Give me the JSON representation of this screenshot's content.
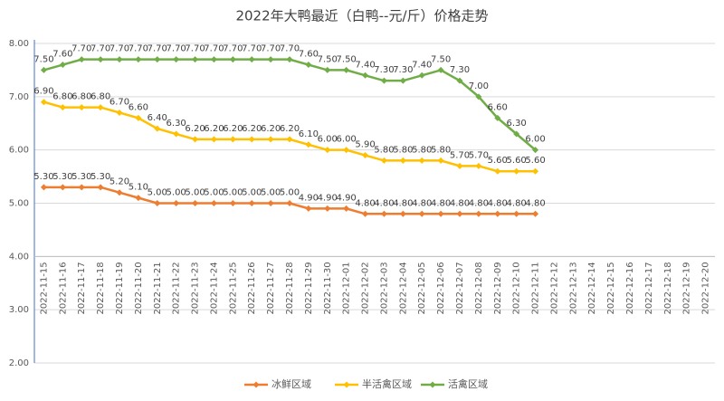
{
  "chart_data": {
    "type": "line",
    "title": "2022年大鸭最近（白鸭--元/斤）价格走势",
    "categories": [
      "2022-11-15",
      "2022-11-16",
      "2022-11-17",
      "2022-11-18",
      "2022-11-19",
      "2022-11-20",
      "2022-11-21",
      "2022-11-22",
      "2022-11-23",
      "2022-11-24",
      "2022-11-25",
      "2022-11-26",
      "2022-11-27",
      "2022-11-28",
      "2022-11-29",
      "2022-11-30",
      "2022-12-01",
      "2022-12-02",
      "2022-12-03",
      "2022-12-04",
      "2022-12-05",
      "2022-12-06",
      "2022-12-07",
      "2022-12-08",
      "2022-12-09",
      "2022-12-10",
      "2022-12-11",
      "2022-12-12",
      "2022-12-13",
      "2022-12-14",
      "2022-12-15",
      "2022-12-16",
      "2022-12-17",
      "2022-12-18",
      "2022-12-19",
      "2022-12-20"
    ],
    "series": [
      {
        "name": "冰鲜区域",
        "color": "#ED7D31",
        "values": [
          5.3,
          5.3,
          5.3,
          5.3,
          5.2,
          5.1,
          5.0,
          5.0,
          5.0,
          5.0,
          5.0,
          5.0,
          5.0,
          5.0,
          4.9,
          4.9,
          4.9,
          4.8,
          4.8,
          4.8,
          4.8,
          4.8,
          4.8,
          4.8,
          4.8,
          4.8,
          4.8,
          null,
          null,
          null,
          null,
          null,
          null,
          null,
          null,
          null
        ],
        "value_labels": [
          "5.30",
          "5.30",
          "5.30",
          "5.30",
          "5.20",
          "5.10",
          "5.00",
          "5.00",
          "5.00",
          "5.00",
          "5.00",
          "5.00",
          "5.00",
          "5.00",
          "4.90",
          "4.90",
          "4.90",
          "4.80",
          "4.80",
          "4.80",
          "4.80",
          "4.80",
          "4.80",
          "4.80",
          "4.80",
          "4.80",
          "4.80",
          null,
          null,
          null,
          null,
          null,
          null,
          null,
          null,
          null
        ]
      },
      {
        "name": "半活禽区域",
        "color": "#FFC000",
        "values": [
          6.9,
          6.8,
          6.8,
          6.8,
          6.7,
          6.6,
          6.4,
          6.3,
          6.2,
          6.2,
          6.2,
          6.2,
          6.2,
          6.2,
          6.1,
          6.0,
          6.0,
          5.9,
          5.8,
          5.8,
          5.8,
          5.8,
          5.7,
          5.7,
          5.6,
          5.6,
          5.6,
          null,
          null,
          null,
          null,
          null,
          null,
          null,
          null,
          null
        ],
        "value_labels": [
          "6.90",
          "6.80",
          "6.80",
          "6.80",
          "6.70",
          "6.60",
          "6.40",
          "6.30",
          "6.20",
          "6.20",
          "6.20",
          "6.20",
          "6.20",
          "6.20",
          "6.10",
          "6.00",
          "6.00",
          "5.90",
          "5.80",
          "5.80",
          "5.80",
          "5.80",
          "5.70",
          "5.70",
          "5.60",
          "5.60",
          "5.60",
          null,
          null,
          null,
          null,
          null,
          null,
          null,
          null,
          null
        ]
      },
      {
        "name": "活禽区域",
        "color": "#70AD47",
        "values": [
          7.5,
          7.6,
          7.7,
          7.7,
          7.7,
          7.7,
          7.7,
          7.7,
          7.7,
          7.7,
          7.7,
          7.7,
          7.7,
          7.7,
          7.6,
          7.5,
          7.5,
          7.4,
          7.3,
          7.3,
          7.4,
          7.5,
          7.3,
          7.0,
          6.6,
          6.3,
          6.0,
          null,
          null,
          null,
          null,
          null,
          null,
          null,
          null,
          null
        ],
        "value_labels": [
          "7.50",
          "7.60",
          "7.70",
          "7.70",
          "7.70",
          "7.70",
          "7.70",
          "7.70",
          "7.70",
          "7.70",
          "7.70",
          "7.70",
          "7.70",
          "7.70",
          "7.60",
          "7.50",
          "7.50",
          "7.40",
          "7.30",
          "7.30",
          "7.40",
          "7.50",
          "7.30",
          "7.00",
          "6.60",
          "6.30",
          "6.00",
          null,
          null,
          null,
          null,
          null,
          null,
          null,
          null,
          null
        ]
      }
    ],
    "ylim": [
      2,
      8
    ],
    "yticks": [
      {
        "value": 2,
        "label": "2.00"
      },
      {
        "value": 3,
        "label": "3.00"
      },
      {
        "value": 4,
        "label": "4.00"
      },
      {
        "value": 5,
        "label": "5.00"
      },
      {
        "value": 6,
        "label": "6.00"
      },
      {
        "value": 7,
        "label": "7.00"
      },
      {
        "value": 8,
        "label": "8.00"
      }
    ],
    "x_axis_crosses": 4,
    "grid": true,
    "legend": "bottom"
  }
}
